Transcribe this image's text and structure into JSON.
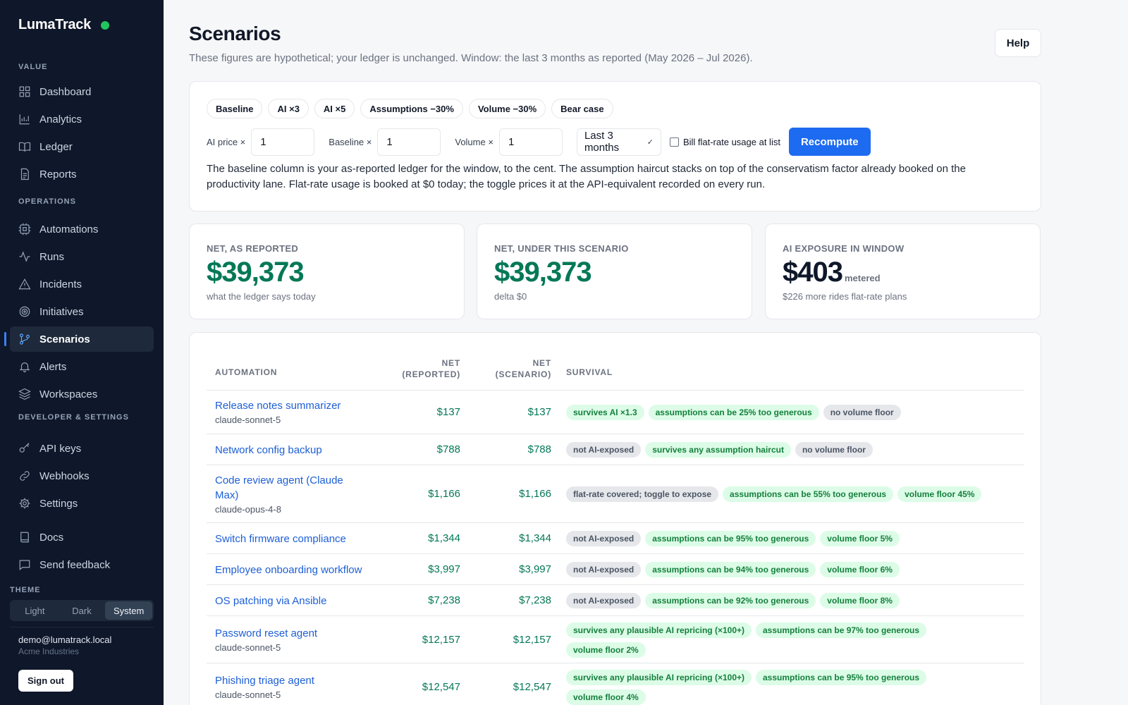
{
  "brand": {
    "name": "LumaTrack",
    "status_color": "#22c55e"
  },
  "nav": {
    "sections": [
      {
        "label": "VALUE",
        "items": [
          {
            "label": "Dashboard",
            "icon": "dashboard-icon"
          },
          {
            "label": "Analytics",
            "icon": "analytics-icon"
          },
          {
            "label": "Ledger",
            "icon": "ledger-icon"
          },
          {
            "label": "Reports",
            "icon": "reports-icon"
          }
        ]
      },
      {
        "label": "OPERATIONS",
        "items": [
          {
            "label": "Automations",
            "icon": "automations-icon"
          },
          {
            "label": "Runs",
            "icon": "runs-icon"
          },
          {
            "label": "Incidents",
            "icon": "incidents-icon"
          },
          {
            "label": "Initiatives",
            "icon": "initiatives-icon"
          },
          {
            "label": "Scenarios",
            "icon": "scenarios-icon",
            "active": true
          },
          {
            "label": "Alerts",
            "icon": "alerts-icon"
          },
          {
            "label": "Workspaces",
            "icon": "workspaces-icon"
          }
        ]
      },
      {
        "label": "DEVELOPER & SETTINGS",
        "items": [
          {
            "label": "API keys",
            "icon": "key-icon"
          },
          {
            "label": "Webhooks",
            "icon": "webhooks-icon"
          },
          {
            "label": "Settings",
            "icon": "gear-icon"
          }
        ]
      }
    ],
    "footer_items": [
      {
        "label": "Docs",
        "icon": "docs-icon"
      },
      {
        "label": "Send feedback",
        "icon": "feedback-icon"
      }
    ]
  },
  "theme": {
    "label": "THEME",
    "options": [
      "Light",
      "Dark",
      "System"
    ],
    "selected": "System"
  },
  "user": {
    "email": "demo@lumatrack.local",
    "org": "Acme Industries",
    "signout_label": "Sign out"
  },
  "header": {
    "title": "Scenarios",
    "subtitle": "These figures are hypothetical; your ledger is unchanged. Window: the last 3 months as reported (May 2026 – Jul 2026).",
    "help_label": "Help"
  },
  "controls": {
    "presets": [
      "Baseline",
      "AI ×3",
      "AI ×5",
      "Assumptions −30%",
      "Volume −30%",
      "Bear case"
    ],
    "ai_price_label": "AI price ×",
    "ai_price_value": "1",
    "baseline_label": "Baseline ×",
    "baseline_value": "1",
    "volume_label": "Volume ×",
    "volume_value": "1",
    "window_value": "Last 3 months",
    "flat_rate_label": "Bill flat-rate usage at list",
    "recompute_label": "Recompute",
    "explainer": "The baseline column is your as-reported ledger for the window, to the cent. The assumption haircut stacks on top of the conservatism factor already booked on the productivity lane. Flat-rate usage is booked at $0 today; the toggle prices it at the API-equivalent recorded on every run."
  },
  "stats": [
    {
      "label": "NET, AS REPORTED",
      "value": "$39,373",
      "unit": "",
      "note": "what the ledger says today",
      "tone": "green"
    },
    {
      "label": "NET, UNDER THIS SCENARIO",
      "value": "$39,373",
      "unit": "",
      "note": "delta $0",
      "tone": "green"
    },
    {
      "label": "AI EXPOSURE IN WINDOW",
      "value": "$403",
      "unit": "metered",
      "note": "$226 more rides flat-rate plans",
      "tone": "dark"
    }
  ],
  "table": {
    "headers": {
      "automation": "AUTOMATION",
      "net_reported_1": "NET",
      "net_reported_2": "(REPORTED)",
      "net_scenario_1": "NET",
      "net_scenario_2": "(SCENARIO)",
      "survival": "SURVIVAL"
    },
    "rows": [
      {
        "name": "Release notes summarizer",
        "model": "claude-sonnet-5",
        "reported": "$137",
        "scenario": "$137",
        "badges": [
          {
            "text": "survives AI ×1.3",
            "tone": "green"
          },
          {
            "text": "assumptions can be 25% too generous",
            "tone": "green"
          },
          {
            "text": "no volume floor",
            "tone": "gray"
          }
        ]
      },
      {
        "name": "Network config backup",
        "model": "",
        "reported": "$788",
        "scenario": "$788",
        "badges": [
          {
            "text": "not AI-exposed",
            "tone": "gray"
          },
          {
            "text": "survives any assumption haircut",
            "tone": "green"
          },
          {
            "text": "no volume floor",
            "tone": "gray"
          }
        ]
      },
      {
        "name": "Code review agent (Claude Max)",
        "model": "claude-opus-4-8",
        "reported": "$1,166",
        "scenario": "$1,166",
        "badges": [
          {
            "text": "flat-rate covered; toggle to expose",
            "tone": "gray"
          },
          {
            "text": "assumptions can be 55% too generous",
            "tone": "green"
          },
          {
            "text": "volume floor 45%",
            "tone": "green"
          }
        ]
      },
      {
        "name": "Switch firmware compliance",
        "model": "",
        "reported": "$1,344",
        "scenario": "$1,344",
        "badges": [
          {
            "text": "not AI-exposed",
            "tone": "gray"
          },
          {
            "text": "assumptions can be 95% too generous",
            "tone": "green"
          },
          {
            "text": "volume floor 5%",
            "tone": "green"
          }
        ]
      },
      {
        "name": "Employee onboarding workflow",
        "model": "",
        "reported": "$3,997",
        "scenario": "$3,997",
        "badges": [
          {
            "text": "not AI-exposed",
            "tone": "gray"
          },
          {
            "text": "assumptions can be 94% too generous",
            "tone": "green"
          },
          {
            "text": "volume floor 6%",
            "tone": "green"
          }
        ]
      },
      {
        "name": "OS patching via Ansible",
        "model": "",
        "reported": "$7,238",
        "scenario": "$7,238",
        "badges": [
          {
            "text": "not AI-exposed",
            "tone": "gray"
          },
          {
            "text": "assumptions can be 92% too generous",
            "tone": "green"
          },
          {
            "text": "volume floor 8%",
            "tone": "green"
          }
        ]
      },
      {
        "name": "Password reset agent",
        "model": "claude-sonnet-5",
        "reported": "$12,157",
        "scenario": "$12,157",
        "badges": [
          {
            "text": "survives any plausible AI repricing (×100+)",
            "tone": "green"
          },
          {
            "text": "assumptions can be 97% too generous",
            "tone": "green"
          },
          {
            "text": "volume floor 2%",
            "tone": "green"
          }
        ]
      },
      {
        "name": "Phishing triage agent",
        "model": "claude-sonnet-5",
        "reported": "$12,547",
        "scenario": "$12,547",
        "badges": [
          {
            "text": "survives any plausible AI repricing (×100+)",
            "tone": "green"
          },
          {
            "text": "assumptions can be 95% too generous",
            "tone": "green"
          },
          {
            "text": "volume floor 4%",
            "tone": "green"
          }
        ]
      }
    ]
  }
}
